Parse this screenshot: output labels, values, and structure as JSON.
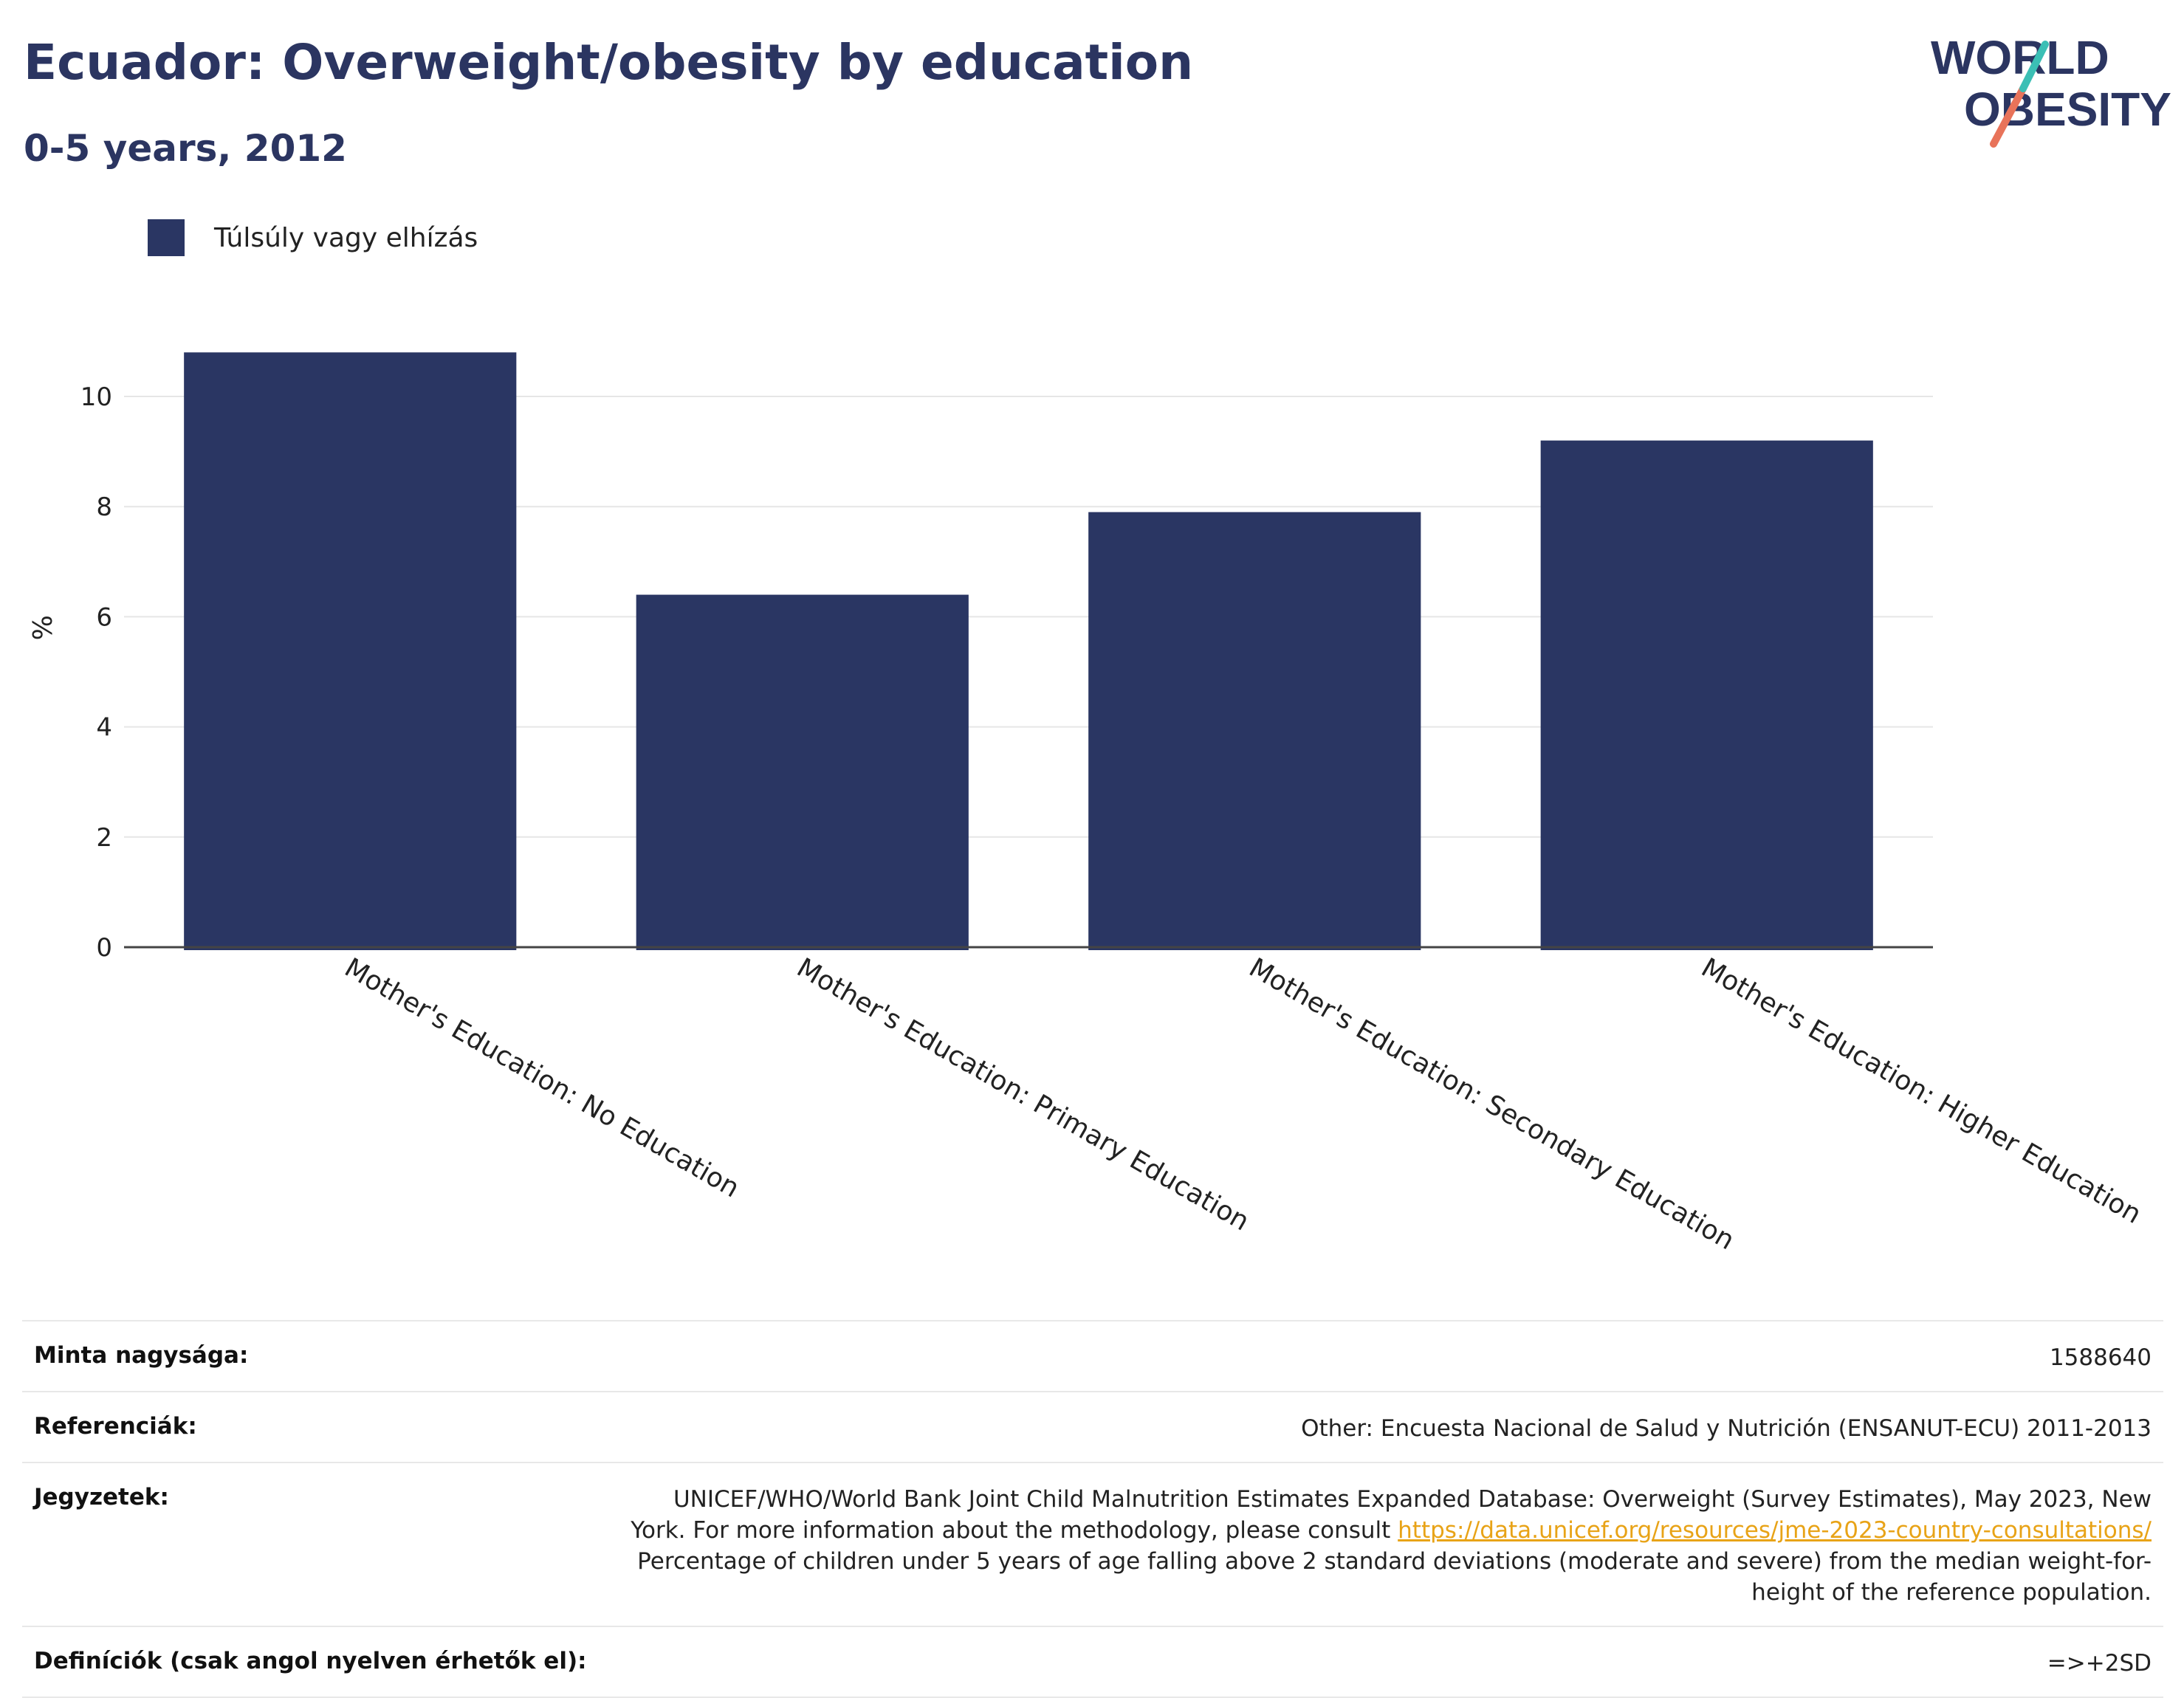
{
  "header": {
    "title": "Ecuador: Overweight/obesity by education",
    "subtitle": "0-5 years, 2012"
  },
  "logo": {
    "line1": "WORLD",
    "line2": "OBESITY"
  },
  "colors": {
    "bar": "#2a3663",
    "title": "#2b3561",
    "grid": "#e6e6e6",
    "link": "#e8a317"
  },
  "chart_data": {
    "type": "bar",
    "categories": [
      "Mother's Education: No Education",
      "Mother's Education: Primary Education",
      "Mother's Education: Secondary Education",
      "Mother's Education: Higher Education"
    ],
    "series": [
      {
        "name": "Túlsúly vagy elhízás",
        "values": [
          10.8,
          6.4,
          7.9,
          9.2
        ]
      }
    ],
    "ylabel": "%",
    "ylim": [
      0,
      11
    ],
    "yticks": [
      0,
      2,
      4,
      6,
      8,
      10
    ],
    "grid": true,
    "legend_position": "top-left"
  },
  "info": {
    "sample_label": "Minta nagysága:",
    "sample_value": "1588640",
    "refs_label": "Referenciák:",
    "refs_value": "Other: Encuesta Nacional de Salud y Nutrición (ENSANUT-ECU) 2011-2013",
    "notes_label": "Jegyzetek:",
    "notes_text1": "UNICEF/WHO/World Bank Joint Child Malnutrition Estimates Expanded Database: Overweight (Survey Estimates), May 2023, New York. For more information about the methodology, please consult ",
    "notes_link": "https://data.unicef.org/resources/jme-2023-country-consultations/",
    "notes_text2": " Percentage of children under 5 years of age falling above 2 standard deviations (moderate and severe) from the median weight-for-height of the reference population.",
    "defs_label": "Definíciók (csak angol nyelven érhetők el):",
    "defs_value": "=>+2SD"
  }
}
